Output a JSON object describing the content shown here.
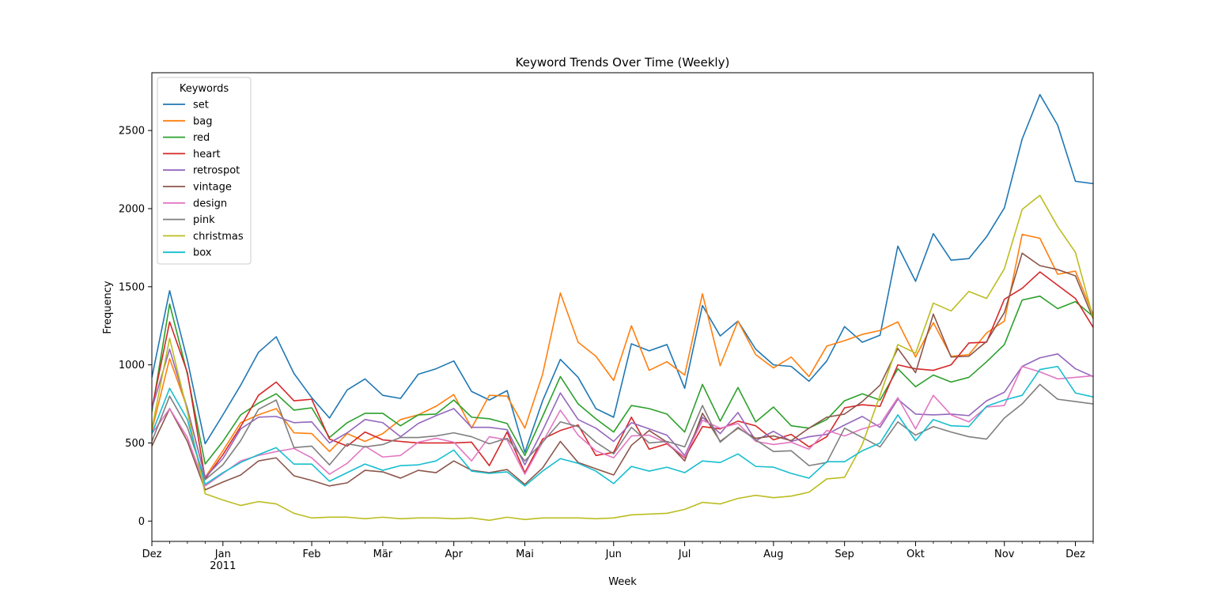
{
  "chart_data": {
    "type": "line",
    "title": "Keyword Trends Over Time (Weekly)",
    "xlabel": "Week",
    "ylabel": "Frequency",
    "ylim": [
      -130,
      2870
    ],
    "yticks": [
      0,
      500,
      1000,
      1500,
      2000,
      2500
    ],
    "grid": false,
    "legend": {
      "title": "Keywords",
      "placement": "top-left"
    },
    "x_range": [
      "2010-12-05",
      "2011-12-11"
    ],
    "x_major_ticks": [
      {
        "date": "2010-12-05",
        "label": "Dez",
        "sublabel": ""
      },
      {
        "date": "2011-01-02",
        "label": "Jan",
        "sublabel": "2011"
      },
      {
        "date": "2011-02-06",
        "label": "Feb",
        "sublabel": ""
      },
      {
        "date": "2011-03-06",
        "label": "Mär",
        "sublabel": ""
      },
      {
        "date": "2011-04-03",
        "label": "Apr",
        "sublabel": ""
      },
      {
        "date": "2011-05-01",
        "label": "Mai",
        "sublabel": ""
      },
      {
        "date": "2011-06-05",
        "label": "Jun",
        "sublabel": ""
      },
      {
        "date": "2011-07-03",
        "label": "Jul",
        "sublabel": ""
      },
      {
        "date": "2011-08-07",
        "label": "Aug",
        "sublabel": ""
      },
      {
        "date": "2011-09-04",
        "label": "Sep",
        "sublabel": ""
      },
      {
        "date": "2011-10-02",
        "label": "Okt",
        "sublabel": ""
      },
      {
        "date": "2011-11-06",
        "label": "Nov",
        "sublabel": ""
      },
      {
        "date": "2011-12-04",
        "label": "Dez",
        "sublabel": ""
      }
    ],
    "x": [
      "2010-12-05",
      "2010-12-12",
      "2010-12-19",
      "2010-12-26",
      "2011-01-02",
      "2011-01-09",
      "2011-01-16",
      "2011-01-23",
      "2011-01-30",
      "2011-02-06",
      "2011-02-13",
      "2011-02-20",
      "2011-02-27",
      "2011-03-06",
      "2011-03-13",
      "2011-03-20",
      "2011-03-27",
      "2011-04-03",
      "2011-04-10",
      "2011-04-17",
      "2011-04-24",
      "2011-05-01",
      "2011-05-08",
      "2011-05-15",
      "2011-05-22",
      "2011-05-29",
      "2011-06-05",
      "2011-06-12",
      "2011-06-19",
      "2011-06-26",
      "2011-07-03",
      "2011-07-10",
      "2011-07-17",
      "2011-07-24",
      "2011-07-31",
      "2011-08-07",
      "2011-08-14",
      "2011-08-21",
      "2011-08-28",
      "2011-09-04",
      "2011-09-11",
      "2011-09-18",
      "2011-09-25",
      "2011-10-02",
      "2011-10-09",
      "2011-10-16",
      "2011-10-23",
      "2011-10-30",
      "2011-11-06",
      "2011-11-13",
      "2011-11-20",
      "2011-11-27",
      "2011-12-04",
      "2011-12-11"
    ],
    "series": [
      {
        "name": "set",
        "color": "#1f77b4",
        "values": [
          920,
          1475,
          1030,
          495,
          680,
          870,
          1080,
          1180,
          945,
          790,
          660,
          840,
          910,
          805,
          785,
          940,
          975,
          1025,
          830,
          775,
          835,
          440,
          770,
          1035,
          920,
          720,
          665,
          1135,
          1090,
          1130,
          850,
          1380,
          1185,
          1280,
          1100,
          1000,
          990,
          895,
          1025,
          1245,
          1145,
          1190,
          1760,
          1535,
          1840,
          1670,
          1680,
          1820,
          2005,
          2445,
          2730,
          2535,
          2175,
          2160
        ]
      },
      {
        "name": "bag",
        "color": "#ff7f0e",
        "values": [
          580,
          1040,
          720,
          280,
          450,
          630,
          680,
          720,
          565,
          560,
          445,
          560,
          510,
          560,
          650,
          680,
          735,
          810,
          595,
          805,
          800,
          595,
          940,
          1460,
          1145,
          1055,
          900,
          1250,
          965,
          1020,
          935,
          1455,
          995,
          1280,
          1065,
          980,
          1050,
          925,
          1120,
          1155,
          1195,
          1220,
          1275,
          1050,
          1270,
          1055,
          1065,
          1205,
          1280,
          1835,
          1810,
          1580,
          1600,
          1320
        ]
      },
      {
        "name": "red",
        "color": "#2ca02c",
        "values": [
          700,
          1390,
          940,
          365,
          510,
          680,
          755,
          815,
          710,
          725,
          535,
          630,
          690,
          690,
          610,
          680,
          685,
          775,
          665,
          655,
          625,
          420,
          670,
          925,
          750,
          655,
          570,
          740,
          720,
          685,
          570,
          875,
          640,
          855,
          635,
          730,
          610,
          595,
          650,
          770,
          815,
          775,
          975,
          860,
          935,
          890,
          920,
          1020,
          1130,
          1415,
          1440,
          1360,
          1405,
          1310
        ]
      },
      {
        "name": "heart",
        "color": "#d62728",
        "values": [
          720,
          1275,
          950,
          270,
          425,
          605,
          805,
          890,
          770,
          780,
          525,
          480,
          570,
          520,
          510,
          500,
          500,
          500,
          505,
          355,
          570,
          310,
          525,
          580,
          615,
          420,
          440,
          665,
          460,
          495,
          405,
          605,
          590,
          640,
          610,
          520,
          555,
          475,
          540,
          725,
          745,
          735,
          1000,
          975,
          965,
          1000,
          1140,
          1145,
          1420,
          1490,
          1595,
          1510,
          1425,
          1240
        ]
      },
      {
        "name": "retrospot",
        "color": "#9467bd",
        "values": [
          720,
          1100,
          720,
          280,
          400,
          590,
          665,
          670,
          630,
          635,
          500,
          565,
          650,
          630,
          540,
          625,
          675,
          720,
          600,
          600,
          585,
          360,
          580,
          820,
          650,
          595,
          510,
          630,
          590,
          550,
          420,
          665,
          560,
          695,
          515,
          575,
          510,
          540,
          555,
          615,
          670,
          600,
          780,
          685,
          680,
          685,
          675,
          770,
          825,
          990,
          1045,
          1070,
          975,
          925
        ]
      },
      {
        "name": "vintage",
        "color": "#8c564b",
        "values": [
          480,
          720,
          510,
          200,
          250,
          295,
          385,
          405,
          290,
          260,
          225,
          245,
          325,
          315,
          275,
          325,
          310,
          385,
          325,
          310,
          330,
          235,
          340,
          510,
          375,
          335,
          295,
          485,
          580,
          505,
          385,
          690,
          510,
          595,
          530,
          545,
          515,
          595,
          665,
          685,
          765,
          870,
          1105,
          950,
          1325,
          1050,
          1055,
          1150,
          1335,
          1715,
          1635,
          1610,
          1570,
          1295
        ]
      },
      {
        "name": "design",
        "color": "#e377c2",
        "values": [
          560,
          720,
          535,
          225,
          305,
          385,
          420,
          445,
          465,
          405,
          300,
          370,
          480,
          410,
          420,
          505,
          530,
          505,
          385,
          540,
          520,
          300,
          505,
          710,
          550,
          450,
          405,
          545,
          550,
          500,
          410,
          645,
          595,
          625,
          510,
          490,
          505,
          460,
          580,
          545,
          590,
          620,
          790,
          590,
          805,
          680,
          635,
          730,
          740,
          990,
          955,
          910,
          920,
          930
        ]
      },
      {
        "name": "pink",
        "color": "#7f7f7f",
        "values": [
          510,
          800,
          600,
          265,
          360,
          515,
          715,
          775,
          470,
          480,
          360,
          495,
          475,
          490,
          535,
          535,
          545,
          565,
          540,
          495,
          530,
          385,
          505,
          635,
          605,
          505,
          430,
          600,
          500,
          510,
          475,
          740,
          505,
          600,
          520,
          445,
          450,
          355,
          375,
          595,
          535,
          475,
          635,
          550,
          605,
          570,
          540,
          525,
          660,
          750,
          875,
          780,
          765,
          750
        ]
      },
      {
        "name": "christmas",
        "color": "#bcbd22",
        "values": [
          590,
          1170,
          700,
          175,
          135,
          100,
          125,
          110,
          50,
          20,
          25,
          25,
          15,
          25,
          15,
          20,
          20,
          15,
          20,
          5,
          25,
          10,
          20,
          20,
          20,
          15,
          20,
          40,
          45,
          50,
          75,
          120,
          110,
          145,
          165,
          150,
          160,
          185,
          270,
          280,
          490,
          805,
          1130,
          1075,
          1395,
          1345,
          1470,
          1425,
          1615,
          1995,
          2085,
          1885,
          1720,
          1300
        ]
      },
      {
        "name": "box",
        "color": "#17becf",
        "values": [
          560,
          850,
          650,
          235,
          310,
          375,
          425,
          470,
          365,
          365,
          255,
          310,
          365,
          325,
          355,
          360,
          385,
          455,
          320,
          305,
          315,
          225,
          320,
          400,
          370,
          320,
          240,
          350,
          320,
          345,
          310,
          385,
          375,
          430,
          350,
          345,
          305,
          275,
          380,
          380,
          450,
          500,
          680,
          515,
          650,
          610,
          605,
          735,
          775,
          805,
          970,
          990,
          820,
          795
        ]
      }
    ]
  }
}
